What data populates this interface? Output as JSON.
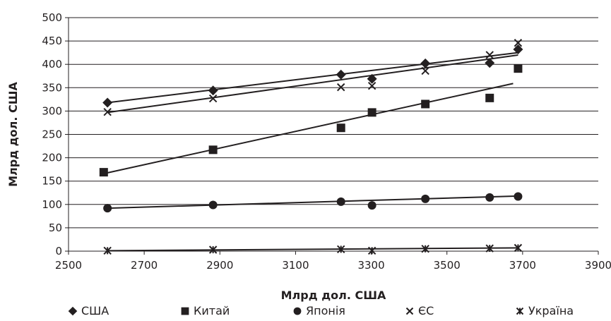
{
  "chart_data": {
    "type": "scatter",
    "title": "",
    "xlabel": "Млрд дол. США",
    "ylabel": "Млрд дол. США",
    "xlim": [
      2500,
      3900
    ],
    "ylim": [
      0,
      500
    ],
    "x_ticks": [
      2500,
      2700,
      2900,
      3100,
      3300,
      3500,
      3700,
      3900
    ],
    "y_ticks": [
      0,
      50,
      100,
      150,
      200,
      250,
      300,
      350,
      400,
      450,
      500
    ],
    "grid": "horizontal",
    "legend_position": "bottom",
    "trendlines": "linear",
    "colors": {
      "series": "#231f20",
      "grid": "#231f20",
      "background": "#ffffff"
    },
    "series": [
      {
        "name": "США",
        "marker": "diamond",
        "points": [
          {
            "x": 2603,
            "y": 318
          },
          {
            "x": 2882,
            "y": 344
          },
          {
            "x": 3220,
            "y": 378
          },
          {
            "x": 3302,
            "y": 369
          },
          {
            "x": 3443,
            "y": 402
          },
          {
            "x": 3613,
            "y": 403
          },
          {
            "x": 3688,
            "y": 432
          }
        ],
        "trend": [
          [
            2603,
            318
          ],
          [
            3688,
            425
          ]
        ]
      },
      {
        "name": "Китай",
        "marker": "square",
        "points": [
          {
            "x": 2593,
            "y": 169
          },
          {
            "x": 2882,
            "y": 217
          },
          {
            "x": 3220,
            "y": 264
          },
          {
            "x": 3302,
            "y": 297
          },
          {
            "x": 3443,
            "y": 315
          },
          {
            "x": 3613,
            "y": 328
          },
          {
            "x": 3688,
            "y": 391
          }
        ],
        "trend": [
          [
            2593,
            166
          ],
          [
            3675,
            359
          ]
        ]
      },
      {
        "name": "Японія",
        "marker": "circle",
        "points": [
          {
            "x": 2603,
            "y": 92
          },
          {
            "x": 2882,
            "y": 99
          },
          {
            "x": 3220,
            "y": 106
          },
          {
            "x": 3302,
            "y": 98
          },
          {
            "x": 3443,
            "y": 112
          },
          {
            "x": 3613,
            "y": 115
          },
          {
            "x": 3688,
            "y": 117
          }
        ],
        "trend": [
          [
            2603,
            92
          ],
          [
            3688,
            118
          ]
        ]
      },
      {
        "name": "ЄС",
        "marker": "x",
        "points": [
          {
            "x": 2603,
            "y": 298
          },
          {
            "x": 2882,
            "y": 327
          },
          {
            "x": 3220,
            "y": 351
          },
          {
            "x": 3302,
            "y": 354
          },
          {
            "x": 3443,
            "y": 386
          },
          {
            "x": 3613,
            "y": 420
          },
          {
            "x": 3688,
            "y": 446
          }
        ],
        "trend": [
          [
            2603,
            297
          ],
          [
            3688,
            420
          ]
        ]
      },
      {
        "name": "Україна",
        "marker": "asterisk",
        "points": [
          {
            "x": 2603,
            "y": 1
          },
          {
            "x": 2882,
            "y": 3
          },
          {
            "x": 3220,
            "y": 4
          },
          {
            "x": 3302,
            "y": 1
          },
          {
            "x": 3443,
            "y": 5
          },
          {
            "x": 3613,
            "y": 6
          },
          {
            "x": 3688,
            "y": 7
          }
        ],
        "trend": [
          [
            2603,
            1
          ],
          [
            3688,
            7
          ]
        ]
      }
    ]
  }
}
